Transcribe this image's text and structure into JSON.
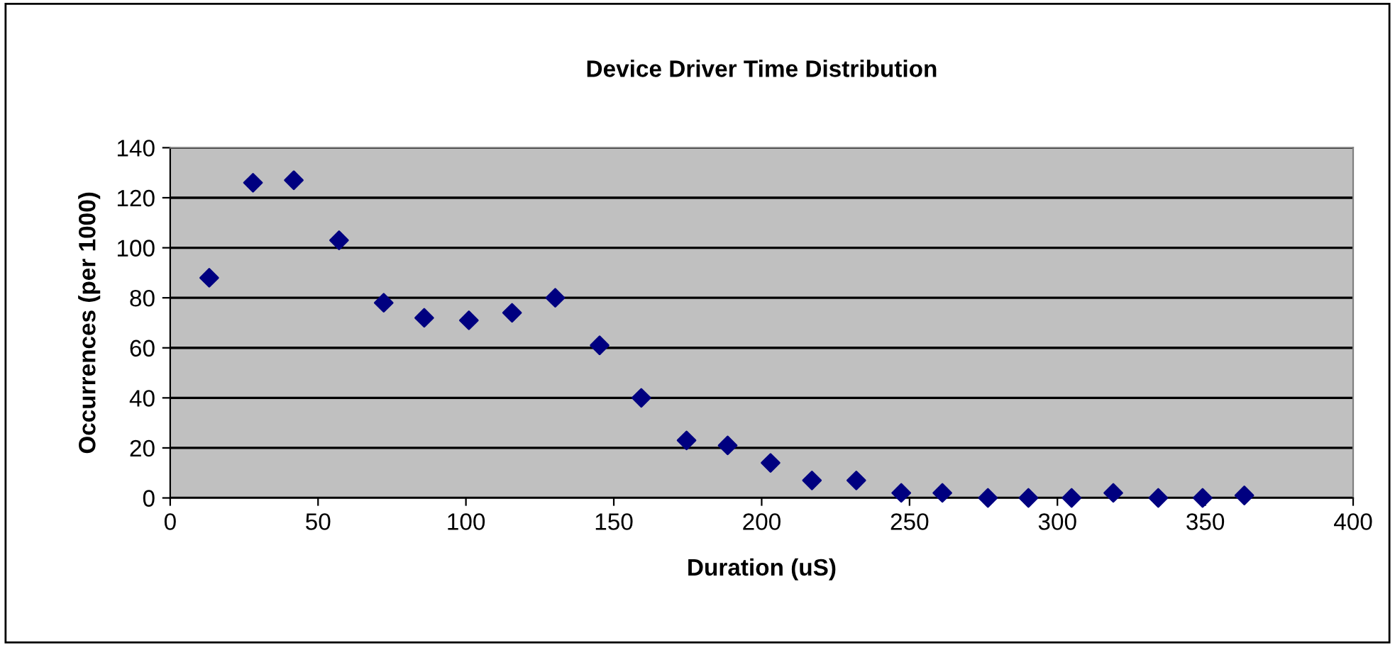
{
  "chart_data": {
    "type": "scatter",
    "title": "Device Driver Time Distribution",
    "xlabel": "Duration (uS)",
    "ylabel": "Occurrences (per 1000)",
    "x": [
      13.2,
      28,
      41.8,
      57.1,
      72.2,
      85.9,
      101,
      115.6,
      130.2,
      145.2,
      159.3,
      174.6,
      188.5,
      203,
      217,
      232,
      247.2,
      261.1,
      276.5,
      290.2,
      304.8,
      318.9,
      334.1,
      349.1,
      363.2
    ],
    "series": [
      {
        "color": "#000080",
        "values": [
          88,
          126,
          127,
          103,
          78,
          72,
          71,
          74,
          80,
          61,
          40,
          23,
          21,
          14,
          7,
          7,
          2,
          2,
          0,
          0,
          0,
          2,
          0,
          0,
          1
        ]
      }
    ],
    "xlim": [
      0,
      400
    ],
    "xticks": [
      0,
      50,
      100,
      150,
      200,
      250,
      300,
      350,
      400
    ],
    "ylim": [
      0,
      140
    ],
    "yticks": [
      0,
      20,
      40,
      60,
      80,
      100,
      120,
      140
    ],
    "grid": "y",
    "marker": "diamond"
  }
}
